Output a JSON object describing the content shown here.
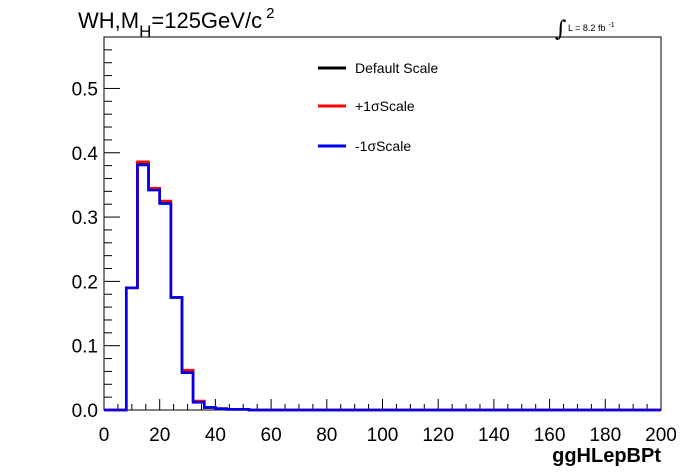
{
  "chart_data": {
    "type": "line",
    "title": {
      "main": "WH,M",
      "sub": "H",
      "rest": "=125GeV/c",
      "sup": "2"
    },
    "lumi": {
      "symbol": "∫",
      "text": "L = 8.2 fb",
      "sup": "-1"
    },
    "xlabel": "ggHLepBPt",
    "ylabel": "",
    "xlim": [
      0,
      200
    ],
    "ylim": [
      0,
      0.58
    ],
    "xticks": [
      0,
      20,
      40,
      60,
      80,
      100,
      120,
      140,
      160,
      180,
      200
    ],
    "yticks": [
      0.0,
      0.1,
      0.2,
      0.3,
      0.4,
      0.5
    ],
    "ytick_labels": [
      "0.0",
      "0.1",
      "0.2",
      "0.3",
      "0.4",
      "0.5"
    ],
    "grid": false,
    "legend_position": "top-center",
    "bin_width": 4,
    "bin_edges_start": 0,
    "series": [
      {
        "name": "Default Scale",
        "color": "#000000",
        "values": [
          0,
          0,
          0.19,
          0.383,
          0.343,
          0.323,
          0.175,
          0.06,
          0.013,
          0.004,
          0.002,
          0.001,
          0.001,
          0,
          0,
          0,
          0,
          0,
          0,
          0,
          0,
          0,
          0,
          0,
          0,
          0,
          0,
          0,
          0,
          0,
          0,
          0,
          0,
          0,
          0,
          0,
          0,
          0,
          0,
          0,
          0,
          0,
          0,
          0,
          0,
          0,
          0,
          0,
          0,
          0
        ]
      },
      {
        "name": "+1σScale",
        "color": "#ff0000",
        "values": [
          0,
          0,
          0.19,
          0.386,
          0.345,
          0.325,
          0.175,
          0.062,
          0.014,
          0.004,
          0.002,
          0.001,
          0.001,
          0,
          0,
          0,
          0,
          0,
          0,
          0,
          0,
          0,
          0,
          0,
          0,
          0,
          0,
          0,
          0,
          0,
          0,
          0,
          0,
          0,
          0,
          0,
          0,
          0,
          0,
          0,
          0,
          0,
          0,
          0,
          0,
          0,
          0,
          0,
          0,
          0
        ]
      },
      {
        "name": "-1σScale",
        "color": "#0000ee",
        "values": [
          0,
          0,
          0.19,
          0.381,
          0.342,
          0.321,
          0.175,
          0.058,
          0.012,
          0.004,
          0.002,
          0.001,
          0.001,
          0,
          0,
          0,
          0,
          0,
          0,
          0,
          0,
          0,
          0,
          0,
          0,
          0,
          0,
          0,
          0,
          0,
          0,
          0,
          0,
          0,
          0,
          0,
          0,
          0,
          0,
          0,
          0,
          0,
          0,
          0,
          0,
          0,
          0,
          0,
          0,
          0
        ]
      }
    ]
  }
}
